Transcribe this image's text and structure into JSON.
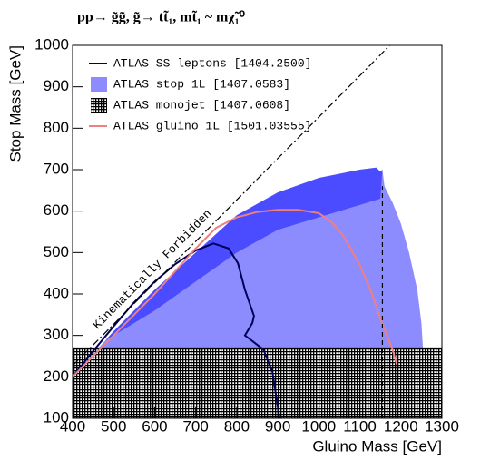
{
  "chart_data": {
    "type": "exclusion",
    "title": "pp→ g̃g̃,  g̃→ tt̃₁, mt̃₁ ~ mχ̃₁⁰",
    "xlabel": "Gluino Mass [GeV]",
    "ylabel": "Stop Mass [GeV]",
    "xlim": [
      400,
      1300
    ],
    "xticks": [
      400,
      500,
      600,
      700,
      800,
      900,
      1000,
      1100,
      1200,
      1300
    ],
    "ylim": [
      100,
      1000
    ],
    "yticks": [
      100,
      200,
      300,
      400,
      500,
      600,
      700,
      800,
      900,
      1000
    ],
    "legend": "upper left",
    "annotation": "Kinematically Forbidden",
    "series": [
      {
        "name": "ATLAS SS leptons [1404.2500]",
        "style": "line",
        "color": "#00005a",
        "x": [
          400,
          450,
          500,
          550,
          600,
          650,
          700,
          743,
          780,
          803,
          820,
          842,
          838,
          820,
          865,
          887,
          904,
          910
        ],
        "values": [
          200,
          262,
          322,
          380,
          430,
          472,
          505,
          522,
          510,
          474,
          410,
          347,
          330,
          300,
          266,
          212,
          102,
          100
        ]
      },
      {
        "name": "ATLAS stop 1L [1407.0583]",
        "style": "fill",
        "color": "#8c8cff",
        "x": [
          400,
          500,
          600,
          700,
          800,
          900,
          1000,
          1100,
          1140,
          1150,
          1155,
          1160,
          1180,
          1200,
          1220,
          1240,
          1250,
          1255,
          1255,
          400
        ],
        "values": [
          200,
          310,
          410,
          500,
          590,
          645,
          680,
          700,
          705,
          695,
          700,
          660,
          620,
          570,
          500,
          410,
          330,
          250,
          100,
          100
        ],
        "band_color": "#4b4bff",
        "band_x": [
          480,
          500,
          600,
          700,
          800,
          900,
          1000,
          1100,
          1140,
          1150,
          1155,
          1150,
          1100,
          1000,
          900,
          800,
          700,
          600,
          500,
          480
        ],
        "band_values": [
          288,
          310,
          410,
          500,
          590,
          645,
          680,
          700,
          705,
          695,
          700,
          630,
          615,
          585,
          555,
          500,
          430,
          360,
          300,
          288
        ]
      },
      {
        "name": "ATLAS monojet [1407.0608]",
        "style": "hatch",
        "color": "#000000",
        "x": [
          400,
          400,
          1300,
          1300
        ],
        "values": [
          100,
          270,
          270,
          100
        ]
      },
      {
        "name": "ATLAS gluino 1L [1501.03555]",
        "style": "line",
        "color": "#f07f7f",
        "x": [
          400,
          500,
          600,
          700,
          750,
          800,
          850,
          900,
          950,
          1000,
          1030,
          1060,
          1100,
          1130,
          1150,
          1170,
          1180,
          1190
        ],
        "values": [
          200,
          300,
          400,
          510,
          560,
          585,
          598,
          603,
          603,
          595,
          575,
          540,
          470,
          400,
          340,
          290,
          265,
          230
        ]
      }
    ],
    "reference_lines": [
      {
        "style": "dashdot",
        "x": [
          400,
          1173
        ],
        "values": [
          227,
          1000
        ]
      },
      {
        "style": "dashed",
        "x": [
          1155,
          1155
        ],
        "values": [
          100,
          660
        ]
      }
    ]
  }
}
